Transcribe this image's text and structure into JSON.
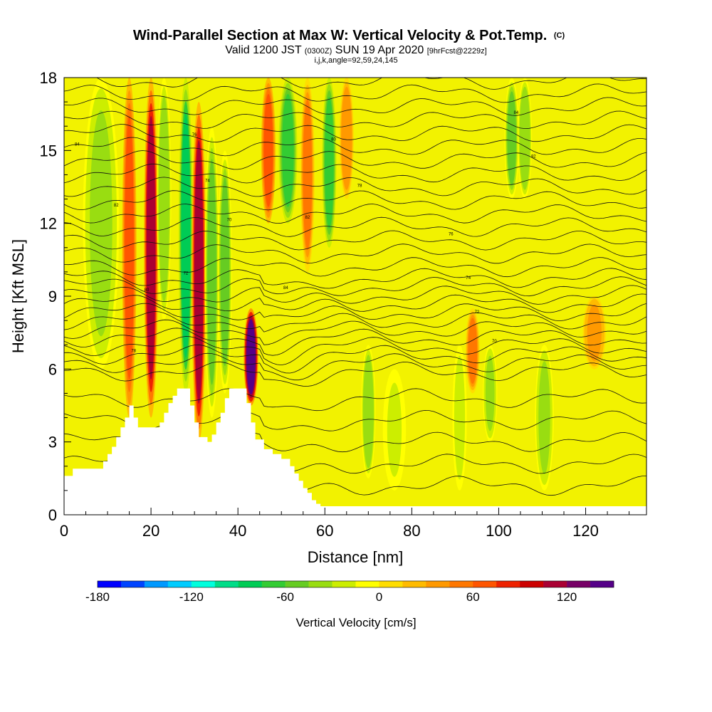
{
  "chart_data": {
    "type": "heatmap",
    "title": "Wind-Parallel Section at Max W: Vertical Velocity & Pot.Temp.",
    "title_mark": "(C)",
    "subtitle": {
      "valid_prefix": "Valid 1200 JST",
      "utc": "(0300Z)",
      "date": "SUN 19 Apr 2020",
      "forecast": "[9hrFcst@2229z]"
    },
    "indices_line": "i,j,k,angle=92,59,24,145",
    "xlabel": "Distance [nm]",
    "ylabel": "Height [Kft MSL]",
    "xlim": [
      0,
      134
    ],
    "ylim": [
      0,
      18
    ],
    "x_ticks": [
      "0",
      "20",
      "40",
      "60",
      "80",
      "100",
      "120"
    ],
    "x_tick_values": [
      0,
      20,
      40,
      60,
      80,
      100,
      120
    ],
    "y_ticks": [
      "0",
      "3",
      "6",
      "9",
      "12",
      "15",
      "18"
    ],
    "y_tick_values": [
      0,
      3,
      6,
      9,
      12,
      15,
      18
    ],
    "terrain_kft": [
      [
        0,
        1.6
      ],
      [
        2,
        1.9
      ],
      [
        7,
        1.9
      ],
      [
        9,
        2.2
      ],
      [
        10,
        2.5
      ],
      [
        11,
        2.8
      ],
      [
        12,
        3.2
      ],
      [
        13,
        3.6
      ],
      [
        14,
        4.0
      ],
      [
        15,
        4.5
      ],
      [
        16,
        4.0
      ],
      [
        17,
        3.6
      ],
      [
        21,
        3.6
      ],
      [
        22,
        3.8
      ],
      [
        23,
        4.2
      ],
      [
        24,
        4.6
      ],
      [
        25,
        4.9
      ],
      [
        26,
        5.2
      ],
      [
        28,
        5.2
      ],
      [
        29,
        4.5
      ],
      [
        30,
        3.8
      ],
      [
        31,
        3.2
      ],
      [
        33,
        3.0
      ],
      [
        34,
        3.3
      ],
      [
        35,
        3.8
      ],
      [
        36,
        4.2
      ],
      [
        37,
        4.8
      ],
      [
        38,
        5.2
      ],
      [
        41,
        5.2
      ],
      [
        42,
        4.6
      ],
      [
        43,
        3.8
      ],
      [
        44,
        3.1
      ],
      [
        46,
        2.7
      ],
      [
        48,
        2.5
      ],
      [
        50,
        2.3
      ],
      [
        52,
        2.0
      ],
      [
        53,
        1.7
      ],
      [
        54,
        1.4
      ],
      [
        55,
        1.1
      ],
      [
        56,
        0.9
      ],
      [
        57,
        0.6
      ],
      [
        58,
        0.45
      ],
      [
        59,
        0.35
      ],
      [
        134,
        0.3
      ]
    ],
    "vertical_velocity_cells": [
      {
        "x": [
          5,
          12
        ],
        "y": [
          6,
          18
        ],
        "w": -35
      },
      {
        "x": [
          14,
          16
        ],
        "y": [
          4,
          18
        ],
        "w": 60
      },
      {
        "x": [
          19,
          21
        ],
        "y": [
          4,
          18
        ],
        "w": 110
      },
      {
        "x": [
          22,
          24
        ],
        "y": [
          8,
          18
        ],
        "w": -45
      },
      {
        "x": [
          27,
          29
        ],
        "y": [
          5,
          18
        ],
        "w": -90
      },
      {
        "x": [
          30,
          32
        ],
        "y": [
          3,
          17
        ],
        "w": 110
      },
      {
        "x": [
          33,
          35
        ],
        "y": [
          4,
          16
        ],
        "w": -60
      },
      {
        "x": [
          36,
          38
        ],
        "y": [
          5,
          15
        ],
        "w": -50
      },
      {
        "x": [
          42,
          44
        ],
        "y": [
          4.5,
          8.5
        ],
        "w": 150
      },
      {
        "x": [
          46,
          48
        ],
        "y": [
          12,
          18
        ],
        "w": 70
      },
      {
        "x": [
          50,
          53
        ],
        "y": [
          12,
          18
        ],
        "w": -75
      },
      {
        "x": [
          55,
          57
        ],
        "y": [
          10,
          18
        ],
        "w": 55
      },
      {
        "x": [
          60,
          62
        ],
        "y": [
          11,
          18
        ],
        "w": -70
      },
      {
        "x": [
          64,
          66
        ],
        "y": [
          13,
          18
        ],
        "w": 40
      },
      {
        "x": [
          69,
          71
        ],
        "y": [
          1.5,
          7
        ],
        "w": -45
      },
      {
        "x": [
          74,
          78
        ],
        "y": [
          1,
          6
        ],
        "w": -20
      },
      {
        "x": [
          90,
          92
        ],
        "y": [
          1,
          7
        ],
        "w": -30
      },
      {
        "x": [
          93,
          95
        ],
        "y": [
          5,
          8.5
        ],
        "w": 50
      },
      {
        "x": [
          97,
          99
        ],
        "y": [
          3,
          7
        ],
        "w": -40
      },
      {
        "x": [
          102,
          104
        ],
        "y": [
          13,
          18
        ],
        "w": -50
      },
      {
        "x": [
          105,
          107
        ],
        "y": [
          13,
          18
        ],
        "w": -45
      },
      {
        "x": [
          109,
          112
        ],
        "y": [
          1,
          7
        ],
        "w": -40
      },
      {
        "x": [
          120,
          124
        ],
        "y": [
          6,
          9
        ],
        "w": 35
      }
    ],
    "theta_contour_labels": [
      "84",
      "82",
      "80",
      "78",
      "76",
      "74",
      "72",
      "70"
    ],
    "colorbar": {
      "label": "Vertical Velocity [cm/s]",
      "ticks": [
        "-180",
        "-120",
        "-60",
        "0",
        "60",
        "120"
      ],
      "tick_values": [
        -180,
        -120,
        -60,
        0,
        60,
        120
      ],
      "vmin": -180,
      "vmax": 150,
      "step": 15,
      "colors": [
        "#0000ff",
        "#0044ff",
        "#0099ff",
        "#00ccff",
        "#00ffdd",
        "#00dd88",
        "#00cc55",
        "#33cc33",
        "#66cc22",
        "#99dd11",
        "#ccee00",
        "#ffff00",
        "#ffdd00",
        "#ffbb00",
        "#ff9900",
        "#ff7700",
        "#ff5500",
        "#ee2200",
        "#cc0000",
        "#aa0033",
        "#770066",
        "#550088"
      ]
    }
  }
}
